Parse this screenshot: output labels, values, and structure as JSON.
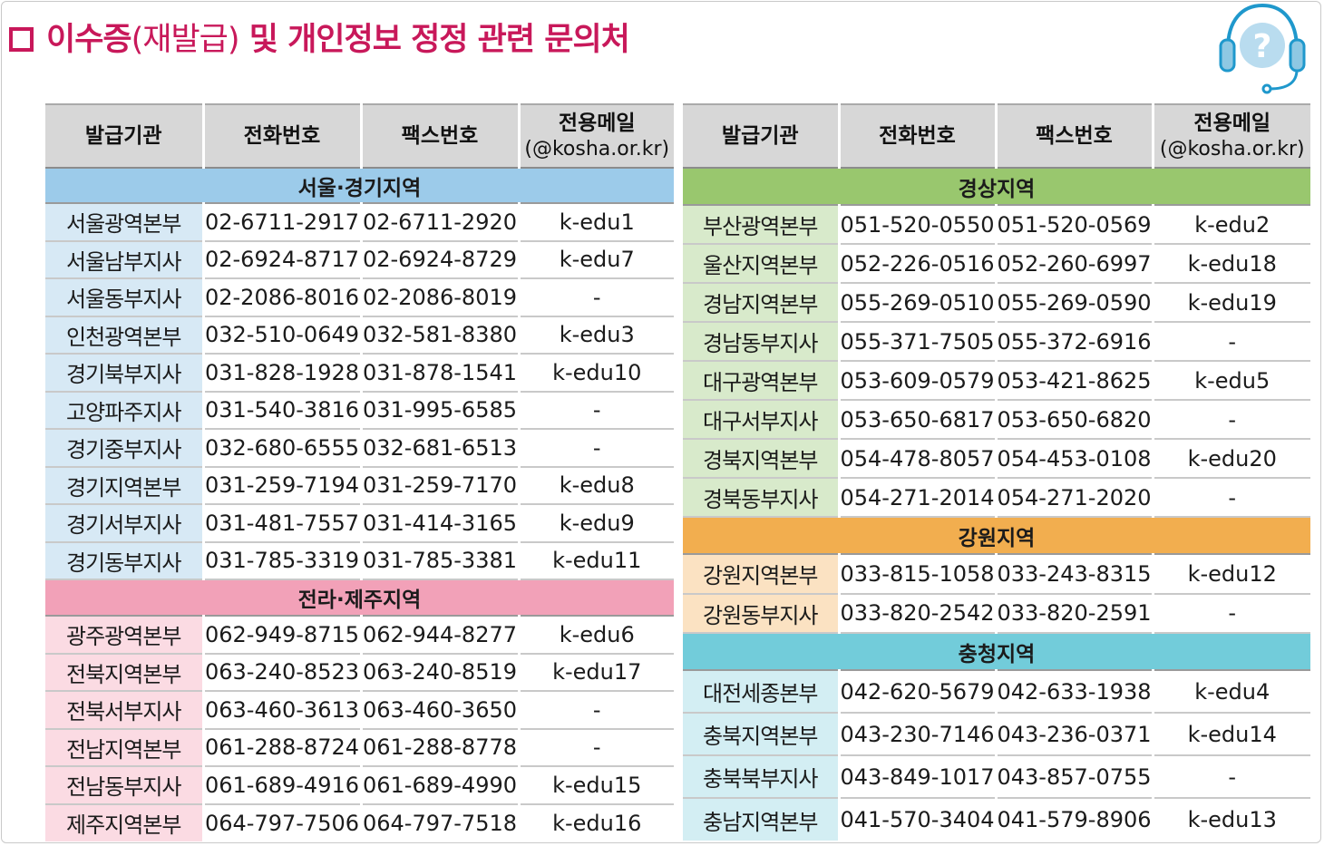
{
  "page": {
    "title_box_glyph": "",
    "title_bold_1": "이수증",
    "title_light": "(재발급)",
    "title_bold_2": " 및 개인정보 정정 관련 문의처",
    "icon": "headset-question-icon"
  },
  "colors": {
    "title": "#c8185a",
    "seoul_header": "#9ccbea",
    "seoul_org": "#d7e9f5",
    "jeolla_header": "#f2a1b8",
    "jeolla_org": "#fbdbe3",
    "gyeongsang_header": "#99c76e",
    "gyeongsang_org": "#d8eacb",
    "gangwon_header": "#f2ae4f",
    "gangwon_org": "#fbe2c2",
    "chungcheong_header": "#72ccda",
    "chungcheong_org": "#d3eef3",
    "header_bg": "#d7d7d7"
  },
  "headers": {
    "org": "발급기관",
    "tel": "전화번호",
    "fax": "팩스번호",
    "mail": "전용메일",
    "mail_domain": "(@kosha.or.kr)"
  },
  "left": {
    "seoul": {
      "name": "서울·경기지역",
      "rows": [
        {
          "org": "서울광역본부",
          "tel": "02-6711-2917",
          "fax": "02-6711-2920",
          "mail": "k-edu1"
        },
        {
          "org": "서울남부지사",
          "tel": "02-6924-8717",
          "fax": "02-6924-8729",
          "mail": "k-edu7"
        },
        {
          "org": "서울동부지사",
          "tel": "02-2086-8016",
          "fax": "02-2086-8019",
          "mail": "-"
        },
        {
          "org": "인천광역본부",
          "tel": "032-510-0649",
          "fax": "032-581-8380",
          "mail": "k-edu3"
        },
        {
          "org": "경기북부지사",
          "tel": "031-828-1928",
          "fax": "031-878-1541",
          "mail": "k-edu10"
        },
        {
          "org": "고양파주지사",
          "tel": "031-540-3816",
          "fax": "031-995-6585",
          "mail": "-"
        },
        {
          "org": "경기중부지사",
          "tel": "032-680-6555",
          "fax": "032-681-6513",
          "mail": "-"
        },
        {
          "org": "경기지역본부",
          "tel": "031-259-7194",
          "fax": "031-259-7170",
          "mail": "k-edu8"
        },
        {
          "org": "경기서부지사",
          "tel": "031-481-7557",
          "fax": "031-414-3165",
          "mail": "k-edu9"
        },
        {
          "org": "경기동부지사",
          "tel": "031-785-3319",
          "fax": "031-785-3381",
          "mail": "k-edu11"
        }
      ]
    },
    "jeolla": {
      "name": "전라·제주지역",
      "rows": [
        {
          "org": "광주광역본부",
          "tel": "062-949-8715",
          "fax": "062-944-8277",
          "mail": "k-edu6"
        },
        {
          "org": "전북지역본부",
          "tel": "063-240-8523",
          "fax": "063-240-8519",
          "mail": "k-edu17"
        },
        {
          "org": "전북서부지사",
          "tel": "063-460-3613",
          "fax": "063-460-3650",
          "mail": "-"
        },
        {
          "org": "전남지역본부",
          "tel": "061-288-8724",
          "fax": "061-288-8778",
          "mail": "-"
        },
        {
          "org": "전남동부지사",
          "tel": "061-689-4916",
          "fax": "061-689-4990",
          "mail": "k-edu15"
        },
        {
          "org": "제주지역본부",
          "tel": "064-797-7506",
          "fax": "064-797-7518",
          "mail": "k-edu16"
        }
      ]
    }
  },
  "right": {
    "gyeongsang": {
      "name": "경상지역",
      "rows": [
        {
          "org": "부산광역본부",
          "tel": "051-520-0550",
          "fax": "051-520-0569",
          "mail": "k-edu2"
        },
        {
          "org": "울산지역본부",
          "tel": "052-226-0516",
          "fax": "052-260-6997",
          "mail": "k-edu18"
        },
        {
          "org": "경남지역본부",
          "tel": "055-269-0510",
          "fax": "055-269-0590",
          "mail": "k-edu19"
        },
        {
          "org": "경남동부지사",
          "tel": "055-371-7505",
          "fax": "055-372-6916",
          "mail": "-"
        },
        {
          "org": "대구광역본부",
          "tel": "053-609-0579",
          "fax": "053-421-8625",
          "mail": "k-edu5"
        },
        {
          "org": "대구서부지사",
          "tel": "053-650-6817",
          "fax": "053-650-6820",
          "mail": "-"
        },
        {
          "org": "경북지역본부",
          "tel": "054-478-8057",
          "fax": "054-453-0108",
          "mail": "k-edu20"
        },
        {
          "org": "경북동부지사",
          "tel": "054-271-2014",
          "fax": "054-271-2020",
          "mail": "-"
        }
      ]
    },
    "gangwon": {
      "name": "강원지역",
      "rows": [
        {
          "org": "강원지역본부",
          "tel": "033-815-1058",
          "fax": "033-243-8315",
          "mail": "k-edu12"
        },
        {
          "org": "강원동부지사",
          "tel": "033-820-2542",
          "fax": "033-820-2591",
          "mail": "-"
        }
      ]
    },
    "chungcheong": {
      "name": "충청지역",
      "rows": [
        {
          "org": "대전세종본부",
          "tel": "042-620-5679",
          "fax": "042-633-1938",
          "mail": "k-edu4"
        },
        {
          "org": "충북지역본부",
          "tel": "043-230-7146",
          "fax": "043-236-0371",
          "mail": "k-edu14"
        },
        {
          "org": "충북북부지사",
          "tel": "043-849-1017",
          "fax": "043-857-0755",
          "mail": "-"
        },
        {
          "org": "충남지역본부",
          "tel": "041-570-3404",
          "fax": "041-579-8906",
          "mail": "k-edu13"
        }
      ]
    }
  }
}
